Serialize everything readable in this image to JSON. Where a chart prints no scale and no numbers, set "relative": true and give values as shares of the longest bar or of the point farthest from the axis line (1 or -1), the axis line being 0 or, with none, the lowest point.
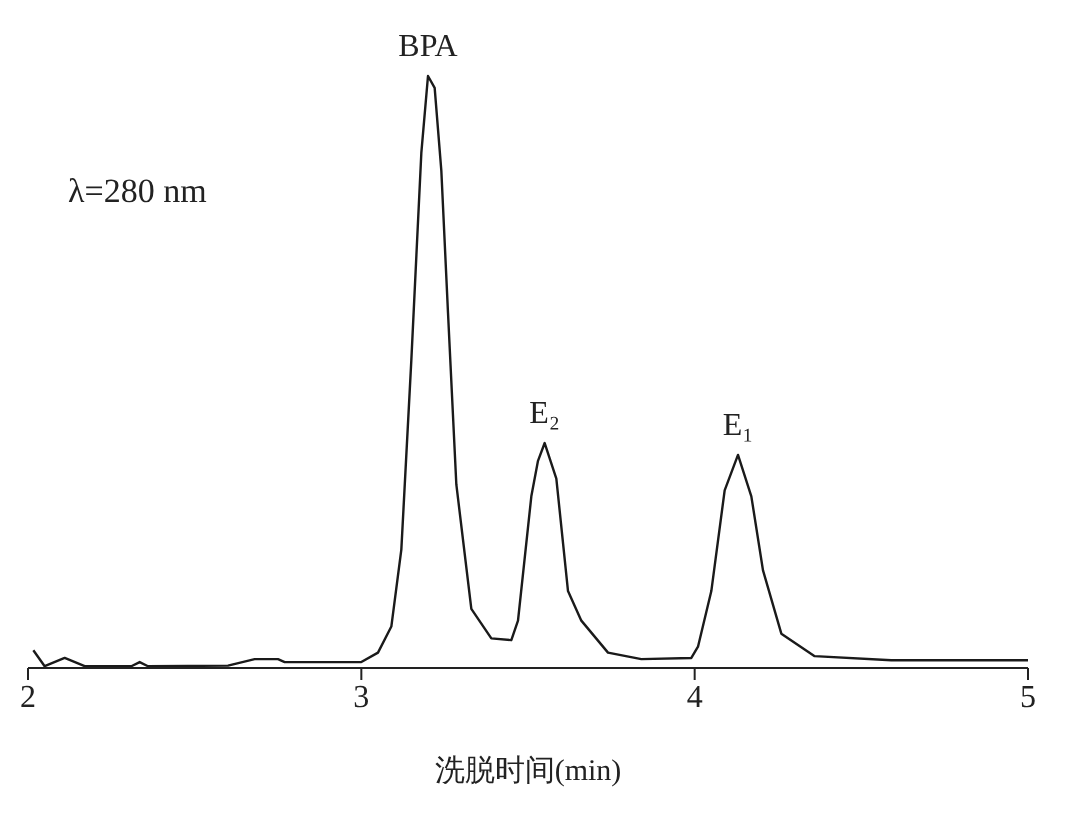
{
  "chart_data": {
    "type": "line",
    "relative": true,
    "xlabel": "洗脱时间(min)",
    "xlim": [
      2,
      5
    ],
    "xticks": [
      2,
      3,
      4,
      5
    ],
    "color": "#1a1a1a",
    "grid": false,
    "legend": false,
    "marker": "none",
    "line_style": "solid",
    "x": [
      2.016,
      2.05,
      2.11,
      2.17,
      2.31,
      2.335,
      2.36,
      2.6,
      2.68,
      2.75,
      2.77,
      3.0,
      3.05,
      3.09,
      3.12,
      3.15,
      3.18,
      3.2,
      3.22,
      3.24,
      3.26,
      3.285,
      3.33,
      3.39,
      3.45,
      3.47,
      3.51,
      3.53,
      3.55,
      3.585,
      3.62,
      3.66,
      3.74,
      3.84,
      3.99,
      4.01,
      4.05,
      4.09,
      4.13,
      4.17,
      4.205,
      4.26,
      4.36,
      4.59,
      5.0
    ],
    "values": [
      0.03,
      0.003,
      0.017,
      0.003,
      0.003,
      0.01,
      0.003,
      0.004,
      0.015,
      0.015,
      0.01,
      0.01,
      0.026,
      0.07,
      0.2,
      0.52,
      0.87,
      1.0,
      0.98,
      0.84,
      0.6,
      0.31,
      0.1,
      0.05,
      0.047,
      0.08,
      0.29,
      0.35,
      0.38,
      0.32,
      0.13,
      0.08,
      0.026,
      0.015,
      0.017,
      0.036,
      0.13,
      0.3,
      0.36,
      0.29,
      0.165,
      0.058,
      0.02,
      0.013,
      0.013
    ],
    "annotations": [
      {
        "text": "BPA",
        "x": 3.2,
        "y": 1.0
      },
      {
        "text": "E₂",
        "x": 3.55,
        "y": 0.38
      },
      {
        "text": "E₁",
        "x": 4.13,
        "y": 0.36
      },
      "λ=280 nm"
    ]
  }
}
